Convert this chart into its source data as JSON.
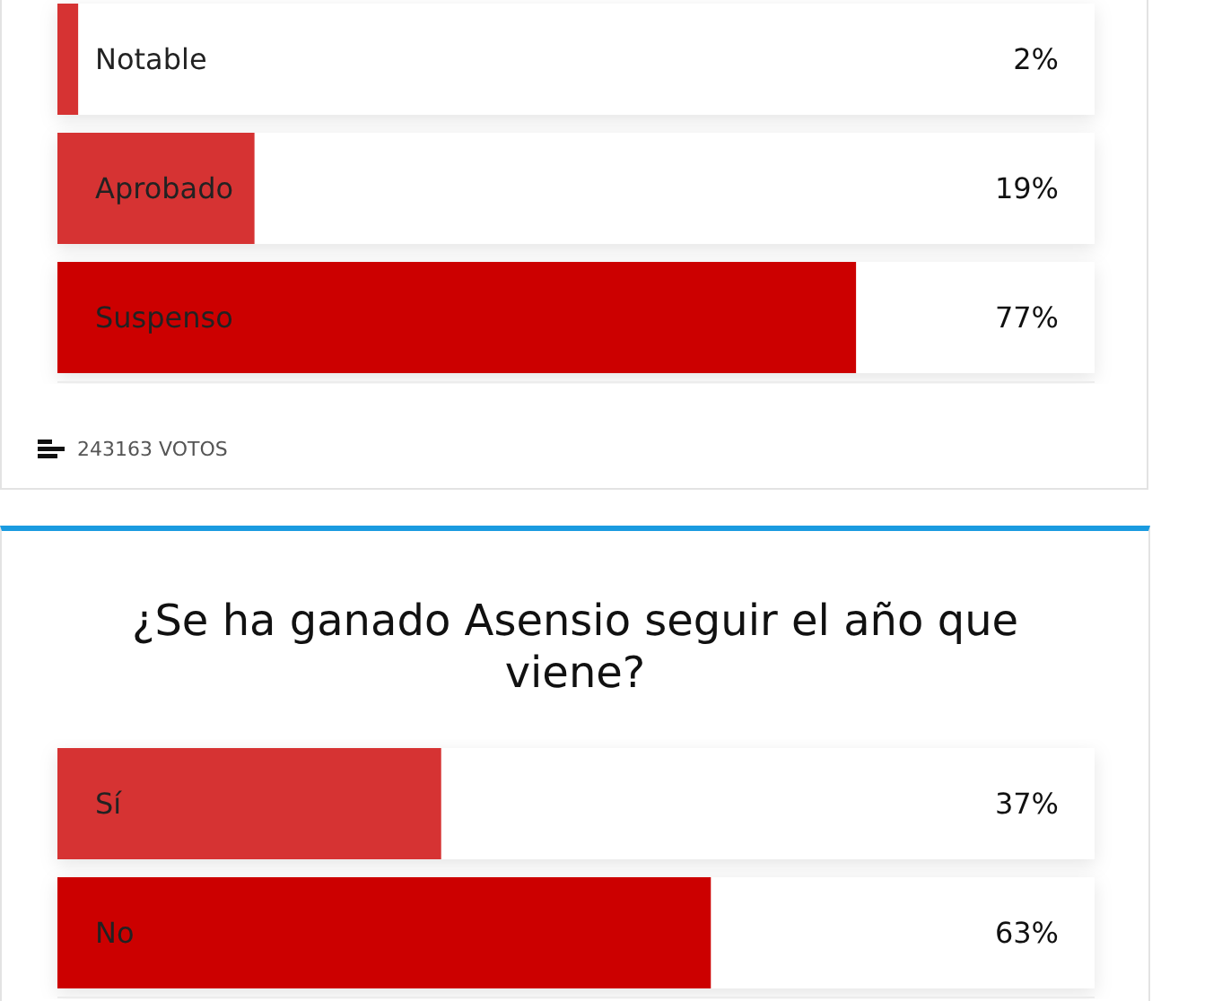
{
  "chart_data": [
    {
      "type": "bar",
      "orientation": "horizontal",
      "categories": [
        "Notable",
        "Aprobado",
        "Suspenso"
      ],
      "values": [
        2,
        19,
        77
      ],
      "colors": [
        "#d63333",
        "#d63333",
        "#cc0000"
      ],
      "value_labels": [
        "2%",
        "19%",
        "77%"
      ],
      "xlim": [
        0,
        100
      ],
      "grid": false,
      "legend": false,
      "annotations": [
        "243163 VOTOS"
      ]
    },
    {
      "type": "bar",
      "orientation": "horizontal",
      "title": "¿Se ha ganado Asensio seguir el año que viene?",
      "categories": [
        "Sí",
        "No"
      ],
      "values": [
        37,
        63
      ],
      "colors": [
        "#d63333",
        "#cc0000"
      ],
      "value_labels": [
        "37%",
        "63%"
      ],
      "xlim": [
        0,
        100
      ],
      "grid": false,
      "legend": false
    }
  ]
}
